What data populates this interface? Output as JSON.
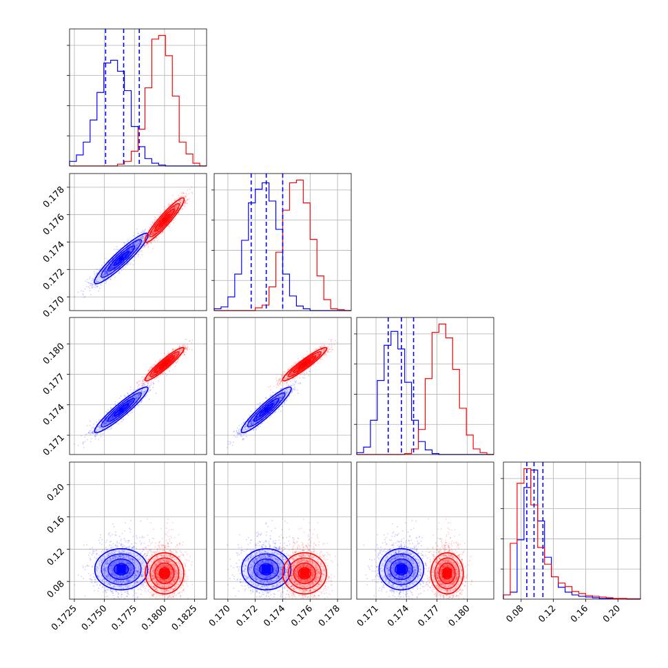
{
  "colors": {
    "series_a": "#0000ff",
    "series_b": "#ff0000",
    "quantile_line": "#0000ff",
    "grid": "#b0b0b0",
    "frame": "#000000"
  },
  "chart_data": {
    "type": "corner",
    "grid": true,
    "title": "",
    "n_params": 4,
    "series": [
      {
        "color": "#0000ff",
        "mean": [
          0.1764,
          0.1728,
          0.1735,
          0.095
        ],
        "std": [
          0.0011,
          0.0009,
          0.0011,
          0.015
        ]
      },
      {
        "color": "#ff0000",
        "mean": [
          0.18,
          0.1756,
          0.178,
          0.09
        ],
        "std": [
          0.0008,
          0.0008,
          0.0008,
          0.015
        ]
      }
    ],
    "quantiles_series_a": [
      [
        0.1751,
        0.1766,
        0.1779
      ],
      [
        0.1717,
        0.1728,
        0.174
      ],
      [
        0.1722,
        0.1735,
        0.1747
      ],
      [
        0.087,
        0.096,
        0.107
      ]
    ],
    "params": [
      {
        "range": [
          0.1721,
          0.1835
        ],
        "ticks": [
          0.1725,
          0.175,
          0.1775,
          0.18,
          0.1825
        ],
        "tick_labels": [
          "0.1725",
          "0.1750",
          "0.1775",
          "0.1800",
          "0.1825"
        ]
      },
      {
        "range": [
          0.169,
          0.179
        ],
        "ticks": [
          0.17,
          0.172,
          0.174,
          0.176,
          0.178
        ],
        "tick_labels": [
          "0.170",
          "0.172",
          "0.174",
          "0.176",
          "0.178"
        ]
      },
      {
        "range": [
          0.1691,
          0.1826
        ],
        "ticks": [
          0.171,
          0.174,
          0.177,
          0.18
        ],
        "tick_labels": [
          "0.171",
          "0.174",
          "0.177",
          "0.180"
        ]
      },
      {
        "range": [
          0.058,
          0.228
        ],
        "ticks": [
          0.08,
          0.12,
          0.16,
          0.2
        ],
        "tick_labels": [
          "0.08",
          "0.12",
          "0.16",
          "0.20"
        ]
      }
    ],
    "histograms": [
      {
        "a": [
          0.5,
          1.2,
          2.6,
          5.0,
          8.0,
          11.2,
          11.5,
          10.3,
          8.2,
          4.3,
          2.1,
          0.8,
          0.3,
          0.1,
          0,
          0,
          0,
          0,
          0,
          0
        ],
        "b": [
          0,
          0,
          0,
          0,
          0,
          0,
          0,
          0.2,
          0.5,
          1.6,
          4.0,
          8.5,
          13.8,
          14.2,
          12.0,
          7.6,
          2.6,
          1.3,
          0.3,
          0
        ]
      },
      {
        "a": [
          0.2,
          0.4,
          1.5,
          4.0,
          7.7,
          11.8,
          13.3,
          14.0,
          12.0,
          8.9,
          4.0,
          1.6,
          0.5,
          0.2,
          0,
          0,
          0,
          0,
          0,
          0
        ],
        "b": [
          0,
          0,
          0,
          0,
          0,
          0,
          0.3,
          0.6,
          2.6,
          6.4,
          11.0,
          14.0,
          14.3,
          11.8,
          7.8,
          3.8,
          1.2,
          0.2,
          0.1,
          0
        ]
      },
      {
        "a": [
          0.2,
          0.8,
          3.7,
          8.0,
          11.8,
          13.3,
          11.4,
          7.8,
          3.7,
          1.4,
          0.5,
          0.1,
          0,
          0,
          0,
          0,
          0,
          0,
          0,
          0
        ],
        "b": [
          0,
          0,
          0,
          0,
          0,
          0,
          0,
          0.1,
          0.6,
          2.7,
          8.2,
          13.2,
          14.1,
          12.6,
          9.2,
          5.0,
          2.1,
          0.6,
          0.2,
          0
        ]
      },
      {
        "a": [
          0.6,
          1.0,
          8.5,
          16.0,
          18.5,
          11.2,
          6.0,
          3.2,
          1.7,
          1.0,
          0.6,
          0.4,
          0.3,
          0.2,
          0.1,
          0.1,
          0.05,
          0.05,
          0,
          0
        ],
        "b": [
          0.6,
          8.0,
          16.6,
          18.7,
          13.5,
          7.4,
          5.0,
          3.2,
          2.3,
          1.8,
          1.1,
          0.8,
          0.5,
          0.4,
          0.3,
          0.2,
          0.1,
          0.1,
          0.05,
          0.05
        ]
      }
    ]
  }
}
